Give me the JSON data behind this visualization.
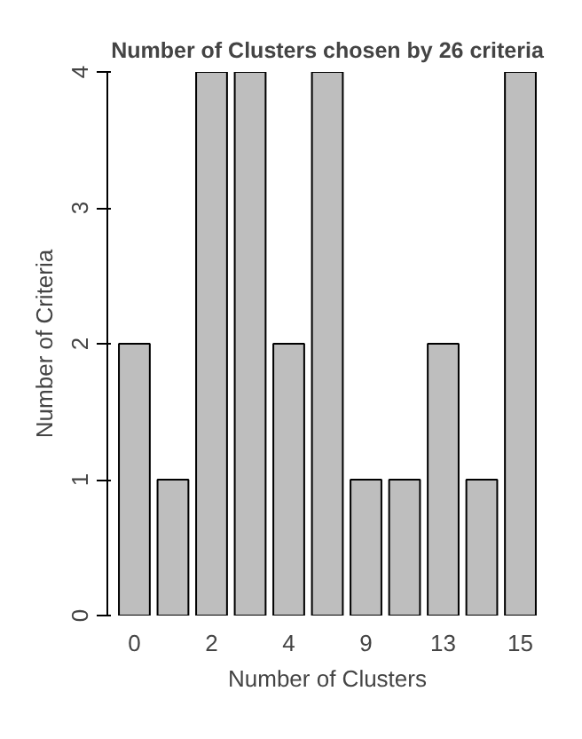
{
  "chart_data": {
    "type": "bar",
    "title": "Number of Clusters chosen by 26 criteria",
    "xlabel": "Number of Clusters",
    "ylabel": "Number of Criteria",
    "categories": [
      "0",
      null,
      "2",
      null,
      "4",
      null,
      "9",
      null,
      "13",
      null,
      "15"
    ],
    "values": [
      2,
      1,
      4,
      4,
      2,
      4,
      1,
      1,
      2,
      1,
      4
    ],
    "color": "#bebebe",
    "ylim": [
      0,
      4
    ],
    "yticks": [
      0,
      1,
      2,
      3,
      4
    ],
    "grid": false
  }
}
